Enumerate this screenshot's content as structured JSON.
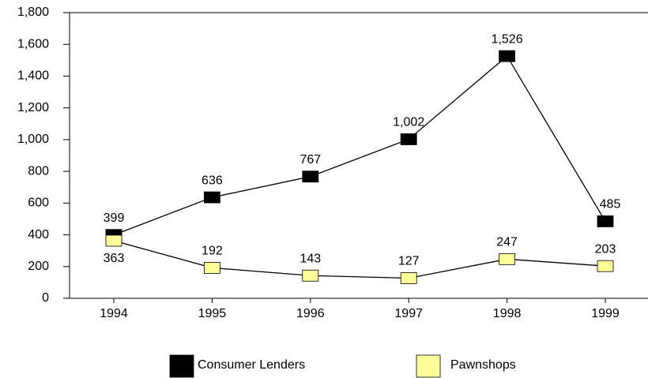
{
  "chart_data": {
    "type": "line",
    "categories": [
      "1994",
      "1995",
      "1996",
      "1997",
      "1998",
      "1999"
    ],
    "series": [
      {
        "name": "Consumer Lenders",
        "color": "#000000",
        "values": [
          399,
          636,
          767,
          1002,
          1526,
          485
        ],
        "value_labels": [
          "399",
          "636",
          "767",
          "1,002",
          "1,526",
          "485"
        ]
      },
      {
        "name": "Pawnshops",
        "color": "#ffff99",
        "values": [
          363,
          192,
          143,
          127,
          247,
          203
        ],
        "value_labels": [
          "363",
          "192",
          "143",
          "127",
          "247",
          "203"
        ]
      }
    ],
    "ylim": [
      0,
      1800
    ],
    "yticks": [
      0,
      200,
      400,
      600,
      800,
      {
        "value": 1000,
        "label": "1,000"
      },
      {
        "value": 1200,
        "label": "1,200"
      },
      {
        "value": 1400,
        "label": "1,400"
      },
      {
        "value": 1600,
        "label": "1,600"
      },
      {
        "value": 1800,
        "label": "1,800"
      }
    ]
  }
}
